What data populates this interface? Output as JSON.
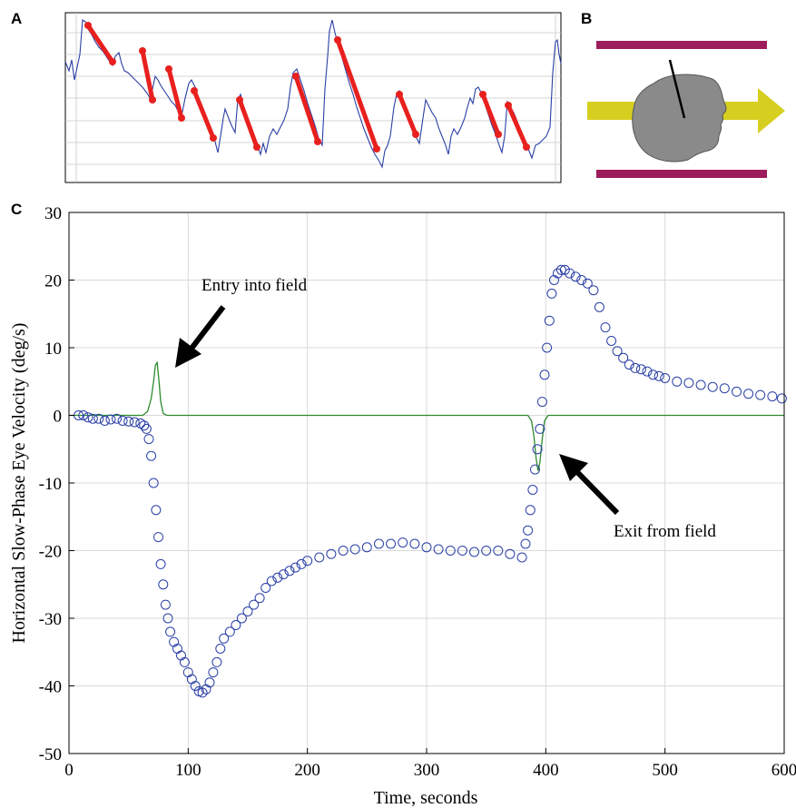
{
  "panels": {
    "a": "A",
    "b": "B",
    "c": "C"
  },
  "chart_data": {
    "type": "scatter",
    "title": "",
    "xlabel": "Time, seconds",
    "ylabel": "Horizontal Slow-Phase Eye Velocity (deg/s)",
    "xlim": [
      0,
      600
    ],
    "ylim": [
      -50,
      30
    ],
    "x_ticks": [
      0,
      100,
      200,
      300,
      400,
      500,
      600
    ],
    "y_ticks": [
      30,
      20,
      10,
      0,
      -10,
      -20,
      -30,
      -40,
      -50
    ],
    "grid": true,
    "annotations": [
      {
        "text": "Entry into field",
        "x": 110,
        "y": 17
      },
      {
        "text": "Exit from field",
        "x": 450,
        "y": -17
      }
    ],
    "series": [
      {
        "kind": "scatter",
        "color": "#2a3fa6",
        "points": [
          [
            8,
            0
          ],
          [
            12,
            0
          ],
          [
            16,
            -0.3
          ],
          [
            20,
            -0.5
          ],
          [
            25,
            -0.5
          ],
          [
            30,
            -0.8
          ],
          [
            35,
            -0.6
          ],
          [
            40,
            -0.5
          ],
          [
            45,
            -0.8
          ],
          [
            50,
            -0.9
          ],
          [
            55,
            -1.0
          ],
          [
            60,
            -1.2
          ],
          [
            63,
            -1.5
          ],
          [
            65,
            -2.0
          ],
          [
            67,
            -3.5
          ],
          [
            69,
            -6
          ],
          [
            71,
            -10
          ],
          [
            73,
            -14
          ],
          [
            75,
            -18
          ],
          [
            77,
            -22
          ],
          [
            79,
            -25
          ],
          [
            81,
            -28
          ],
          [
            83,
            -30
          ],
          [
            85,
            -32
          ],
          [
            88,
            -33.5
          ],
          [
            91,
            -34.5
          ],
          [
            94,
            -35.5
          ],
          [
            97,
            -36.5
          ],
          [
            100,
            -38
          ],
          [
            103,
            -39
          ],
          [
            106,
            -40
          ],
          [
            109,
            -40.8
          ],
          [
            112,
            -41
          ],
          [
            115,
            -40.5
          ],
          [
            118,
            -39.5
          ],
          [
            121,
            -38
          ],
          [
            124,
            -36.5
          ],
          [
            127,
            -34.5
          ],
          [
            130,
            -33
          ],
          [
            135,
            -32
          ],
          [
            140,
            -31
          ],
          [
            145,
            -30
          ],
          [
            150,
            -29
          ],
          [
            155,
            -28
          ],
          [
            160,
            -27
          ],
          [
            165,
            -25.5
          ],
          [
            170,
            -24.5
          ],
          [
            175,
            -24
          ],
          [
            180,
            -23.5
          ],
          [
            185,
            -23
          ],
          [
            190,
            -22.5
          ],
          [
            195,
            -22
          ],
          [
            200,
            -21.5
          ],
          [
            210,
            -21
          ],
          [
            220,
            -20.5
          ],
          [
            230,
            -20
          ],
          [
            240,
            -19.8
          ],
          [
            250,
            -19.5
          ],
          [
            260,
            -19
          ],
          [
            270,
            -19
          ],
          [
            280,
            -18.8
          ],
          [
            290,
            -19
          ],
          [
            300,
            -19.5
          ],
          [
            310,
            -19.8
          ],
          [
            320,
            -20
          ],
          [
            330,
            -20
          ],
          [
            340,
            -20.2
          ],
          [
            350,
            -20
          ],
          [
            360,
            -20
          ],
          [
            370,
            -20.5
          ],
          [
            380,
            -21
          ],
          [
            383,
            -19
          ],
          [
            385,
            -17
          ],
          [
            387,
            -14
          ],
          [
            389,
            -11
          ],
          [
            391,
            -8
          ],
          [
            393,
            -5
          ],
          [
            395,
            -2
          ],
          [
            397,
            2
          ],
          [
            399,
            6
          ],
          [
            401,
            10
          ],
          [
            403,
            14
          ],
          [
            405,
            18
          ],
          [
            407,
            20
          ],
          [
            410,
            21
          ],
          [
            413,
            21.5
          ],
          [
            416,
            21.5
          ],
          [
            420,
            21
          ],
          [
            425,
            20.5
          ],
          [
            430,
            20
          ],
          [
            435,
            19.5
          ],
          [
            440,
            18.5
          ],
          [
            445,
            16
          ],
          [
            450,
            13
          ],
          [
            455,
            11
          ],
          [
            460,
            9.5
          ],
          [
            465,
            8.5
          ],
          [
            470,
            7.5
          ],
          [
            475,
            7
          ],
          [
            480,
            6.8
          ],
          [
            485,
            6.5
          ],
          [
            490,
            6
          ],
          [
            495,
            5.8
          ],
          [
            500,
            5.5
          ],
          [
            510,
            5
          ],
          [
            520,
            4.8
          ],
          [
            530,
            4.5
          ],
          [
            540,
            4.2
          ],
          [
            550,
            4
          ],
          [
            560,
            3.5
          ],
          [
            570,
            3.2
          ],
          [
            580,
            3
          ],
          [
            590,
            2.8
          ],
          [
            598,
            2.5
          ]
        ]
      },
      {
        "kind": "line",
        "color": "#2d8a2d",
        "points": [
          [
            0,
            0
          ],
          [
            62,
            0
          ],
          [
            66,
            0.6
          ],
          [
            69,
            2.5
          ],
          [
            71,
            5
          ],
          [
            72.5,
            7.4
          ],
          [
            74,
            7.8
          ],
          [
            75.5,
            5
          ],
          [
            77,
            2
          ],
          [
            79,
            0.3
          ],
          [
            82,
            0
          ],
          [
            385,
            0
          ],
          [
            388,
            -0.8
          ],
          [
            390,
            -3
          ],
          [
            392,
            -6.5
          ],
          [
            393.5,
            -8.2
          ],
          [
            395,
            -7
          ],
          [
            397,
            -3.5
          ],
          [
            399,
            -0.8
          ],
          [
            402,
            0
          ],
          [
            600,
            0
          ]
        ]
      }
    ]
  }
}
